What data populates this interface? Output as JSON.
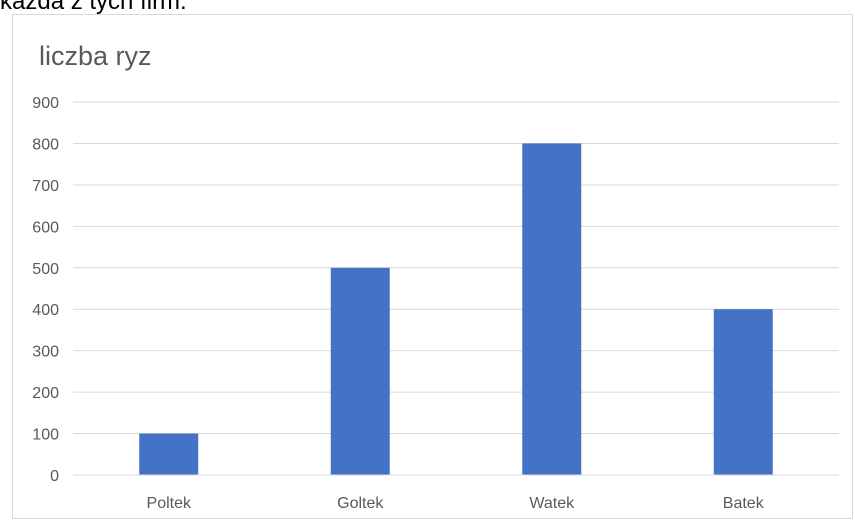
{
  "header_fragment": "każda z tych firm.",
  "chart_data": {
    "type": "bar",
    "title": "liczba ryz",
    "categories": [
      "Poltek",
      "Goltek",
      "Watek",
      "Batek"
    ],
    "values": [
      100,
      500,
      800,
      400
    ],
    "yticks": [
      "0",
      "100",
      "200",
      "300",
      "400",
      "500",
      "600",
      "700",
      "800",
      "900"
    ],
    "ylim": [
      0,
      900
    ],
    "grid": true,
    "legend": "none",
    "bar_color": "#4472c4",
    "grid_color": "#d9d9d9",
    "text_color": "#595959"
  }
}
